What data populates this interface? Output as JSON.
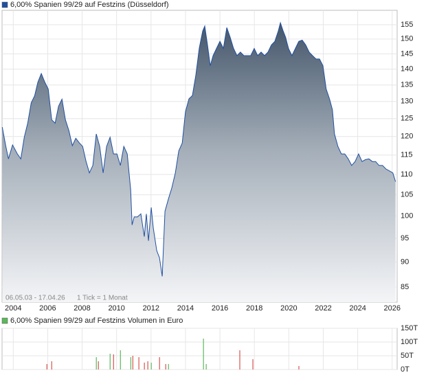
{
  "chart_data": [
    {
      "type": "area",
      "log_scale": true,
      "grid": true,
      "series": [
        {
          "name": "6,00% Spanien 99/29 auf Festzins (Düsseldorf)",
          "color": "#1f4fa0",
          "values": [
            122.6,
            117.5,
            114,
            117.7,
            115.3,
            114,
            119.8,
            123.7,
            129.6,
            131.7,
            135.9,
            138.6,
            135.9,
            133.8,
            124.7,
            123.7,
            128.6,
            130.7,
            124.7,
            121.6,
            117.5,
            119.5,
            118.3,
            117.3,
            113.3,
            110.4,
            112.3,
            120.7,
            117.3,
            110.4,
            117.3,
            119.8,
            115.3,
            115.3,
            112.3,
            117.3,
            115.3,
            106.2,
            98,
            99.8,
            99.8,
            100.5,
            95.4,
            100.5,
            94.5,
            102,
            97.3,
            92.4,
            90.9,
            87.1,
            101.1,
            104,
            106.7,
            110.4,
            116.1,
            118.2,
            127,
            130.8,
            131.8,
            138.1,
            146.9,
            152.8,
            154.5,
            148,
            141.1,
            144.4,
            146.8,
            149.2,
            146.8,
            154,
            150.5,
            146.8,
            144.4,
            145.6,
            144.4,
            144.4,
            144.4,
            146.8,
            144.4,
            145.6,
            144.4,
            145.6,
            148,
            149.2,
            152.8,
            155.7,
            152.8,
            150.5,
            146.8,
            144.4,
            146.8,
            149.2,
            149.6,
            148,
            145.6,
            144.4,
            143.3,
            143.3,
            141.1,
            133.8,
            130.7,
            127.6,
            120.7,
            117.3,
            115.3,
            115.3,
            114,
            112.3,
            113.3,
            115.3,
            113.3,
            113.8,
            114,
            113.3,
            113.3,
            112.3,
            112.3,
            111.4,
            110.9,
            110.4,
            108.2
          ]
        }
      ],
      "x": [
        2003.36,
        2003.56,
        2003.72,
        2003.96,
        2004.24,
        2004.44,
        2004.64,
        2004.84,
        2005.04,
        2005.24,
        2005.43,
        2005.63,
        2005.83,
        2006.03,
        2006.23,
        2006.43,
        2006.63,
        2006.83,
        2007.03,
        2007.23,
        2007.43,
        2007.63,
        2007.83,
        2008.03,
        2008.23,
        2008.42,
        2008.62,
        2008.82,
        2009.02,
        2009.22,
        2009.42,
        2009.62,
        2009.82,
        2010.02,
        2010.22,
        2010.42,
        2010.62,
        2010.82,
        2010.9,
        2011.02,
        2011.21,
        2011.41,
        2011.61,
        2011.73,
        2011.85,
        2012.01,
        2012.13,
        2012.33,
        2012.49,
        2012.65,
        2012.81,
        2013.01,
        2013.21,
        2013.41,
        2013.61,
        2013.81,
        2014.0,
        2014.2,
        2014.4,
        2014.6,
        2014.8,
        2015.0,
        2015.12,
        2015.28,
        2015.44,
        2015.6,
        2015.8,
        2016.0,
        2016.2,
        2016.4,
        2016.6,
        2016.79,
        2016.99,
        2017.19,
        2017.39,
        2017.59,
        2017.79,
        2017.99,
        2018.19,
        2018.39,
        2018.59,
        2018.79,
        2018.99,
        2019.19,
        2019.39,
        2019.51,
        2019.67,
        2019.82,
        2019.98,
        2020.18,
        2020.38,
        2020.58,
        2020.78,
        2020.98,
        2021.18,
        2021.38,
        2021.58,
        2021.78,
        2021.98,
        2022.17,
        2022.37,
        2022.53,
        2022.65,
        2022.85,
        2023.05,
        2023.25,
        2023.45,
        2023.65,
        2023.85,
        2024.05,
        2024.25,
        2024.45,
        2024.65,
        2024.85,
        2025.04,
        2025.24,
        2025.44,
        2025.64,
        2025.84,
        2026.04,
        2026.2
      ],
      "xlim": [
        2003.35,
        2026.29
      ],
      "xticks": [
        2004,
        2006,
        2008,
        2010,
        2012,
        2014,
        2016,
        2018,
        2020,
        2022,
        2024,
        2026
      ],
      "ylim": [
        82.1,
        160.2
      ],
      "yticks": [
        85,
        90,
        95,
        100,
        105,
        110,
        115,
        120,
        125,
        130,
        135,
        140,
        145,
        150,
        155
      ],
      "date_range": "06.05.03 - 17.04.26",
      "tick_note": "1 Tick = 1 Monat"
    },
    {
      "type": "bar",
      "grid": true,
      "series": [
        {
          "name": "6,00% Spanien 99/29 auf Festzins Volumen in Euro",
          "color": "#5cb85c",
          "values": [
            20000,
            30000,
            45000,
            30000,
            57500,
            55000,
            70000,
            45000,
            50000,
            45000,
            25000,
            30000,
            25000,
            45000,
            20000,
            20000,
            112500,
            20000,
            70000,
            37500,
            12500
          ]
        }
      ],
      "x": [
        2005.95,
        2006.23,
        2008.82,
        2008.94,
        2009.62,
        2009.82,
        2010.22,
        2010.82,
        2010.94,
        2011.29,
        2011.61,
        2011.81,
        2012.01,
        2012.49,
        2012.85,
        2013.01,
        2015.04,
        2015.2,
        2017.15,
        2017.91,
        2020.58
      ],
      "bar_colors": [
        "#d9534f",
        "#d9534f",
        "#5cb85c",
        "#d9534f",
        "#5cb85c",
        "#d9534f",
        "#5cb85c",
        "#5cb85c",
        "#d9534f",
        "#d9534f",
        "#d9534f",
        "#d9534f",
        "#5cb85c",
        "#d9534f",
        "#d9534f",
        "#5cb85c",
        "#5cb85c",
        "#5cb85c",
        "#d9534f",
        "#d9534f",
        "#d9534f"
      ],
      "xlim": [
        2003.35,
        2026.29
      ],
      "xticks": [
        2004,
        2006,
        2008,
        2010,
        2012,
        2014,
        2016,
        2018,
        2020,
        2022,
        2024,
        2026
      ],
      "ylim": [
        0,
        150000
      ],
      "yticks": [
        {
          "value": 0,
          "label": "0T"
        },
        {
          "value": 50000,
          "label": "50T"
        },
        {
          "value": 100000,
          "label": "100T"
        },
        {
          "value": 150000,
          "label": "150T"
        }
      ]
    }
  ]
}
